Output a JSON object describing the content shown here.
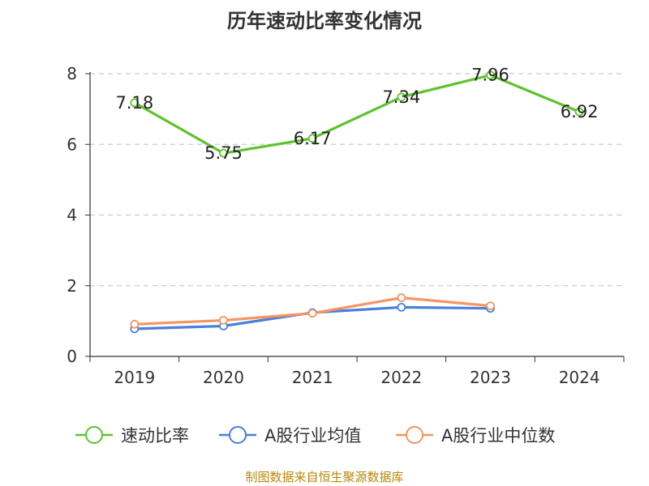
{
  "chart_data": {
    "type": "line",
    "title": "历年速动比率变化情况",
    "categories": [
      "2019",
      "2020",
      "2021",
      "2022",
      "2023",
      "2024"
    ],
    "y_ticks": [
      0,
      2,
      4,
      6,
      8
    ],
    "ylim": [
      0,
      8
    ],
    "grid": true,
    "legend_position": "bottom",
    "series": [
      {
        "name": "速动比率",
        "color": "#5ec22f",
        "values": [
          7.18,
          5.75,
          6.17,
          7.34,
          7.96,
          6.92
        ],
        "labels": [
          "7.18",
          "5.75",
          "6.17",
          "7.34",
          "7.96",
          "6.92"
        ]
      },
      {
        "name": "A股行业均值",
        "color": "#4a7fdb",
        "values": [
          0.78,
          0.86,
          1.24,
          1.39,
          1.36,
          null
        ]
      },
      {
        "name": "A股行业中位数",
        "color": "#f59563",
        "values": [
          0.91,
          1.02,
          1.22,
          1.66,
          1.43,
          null
        ]
      }
    ],
    "source": "制图数据来自恒生聚源数据库"
  }
}
